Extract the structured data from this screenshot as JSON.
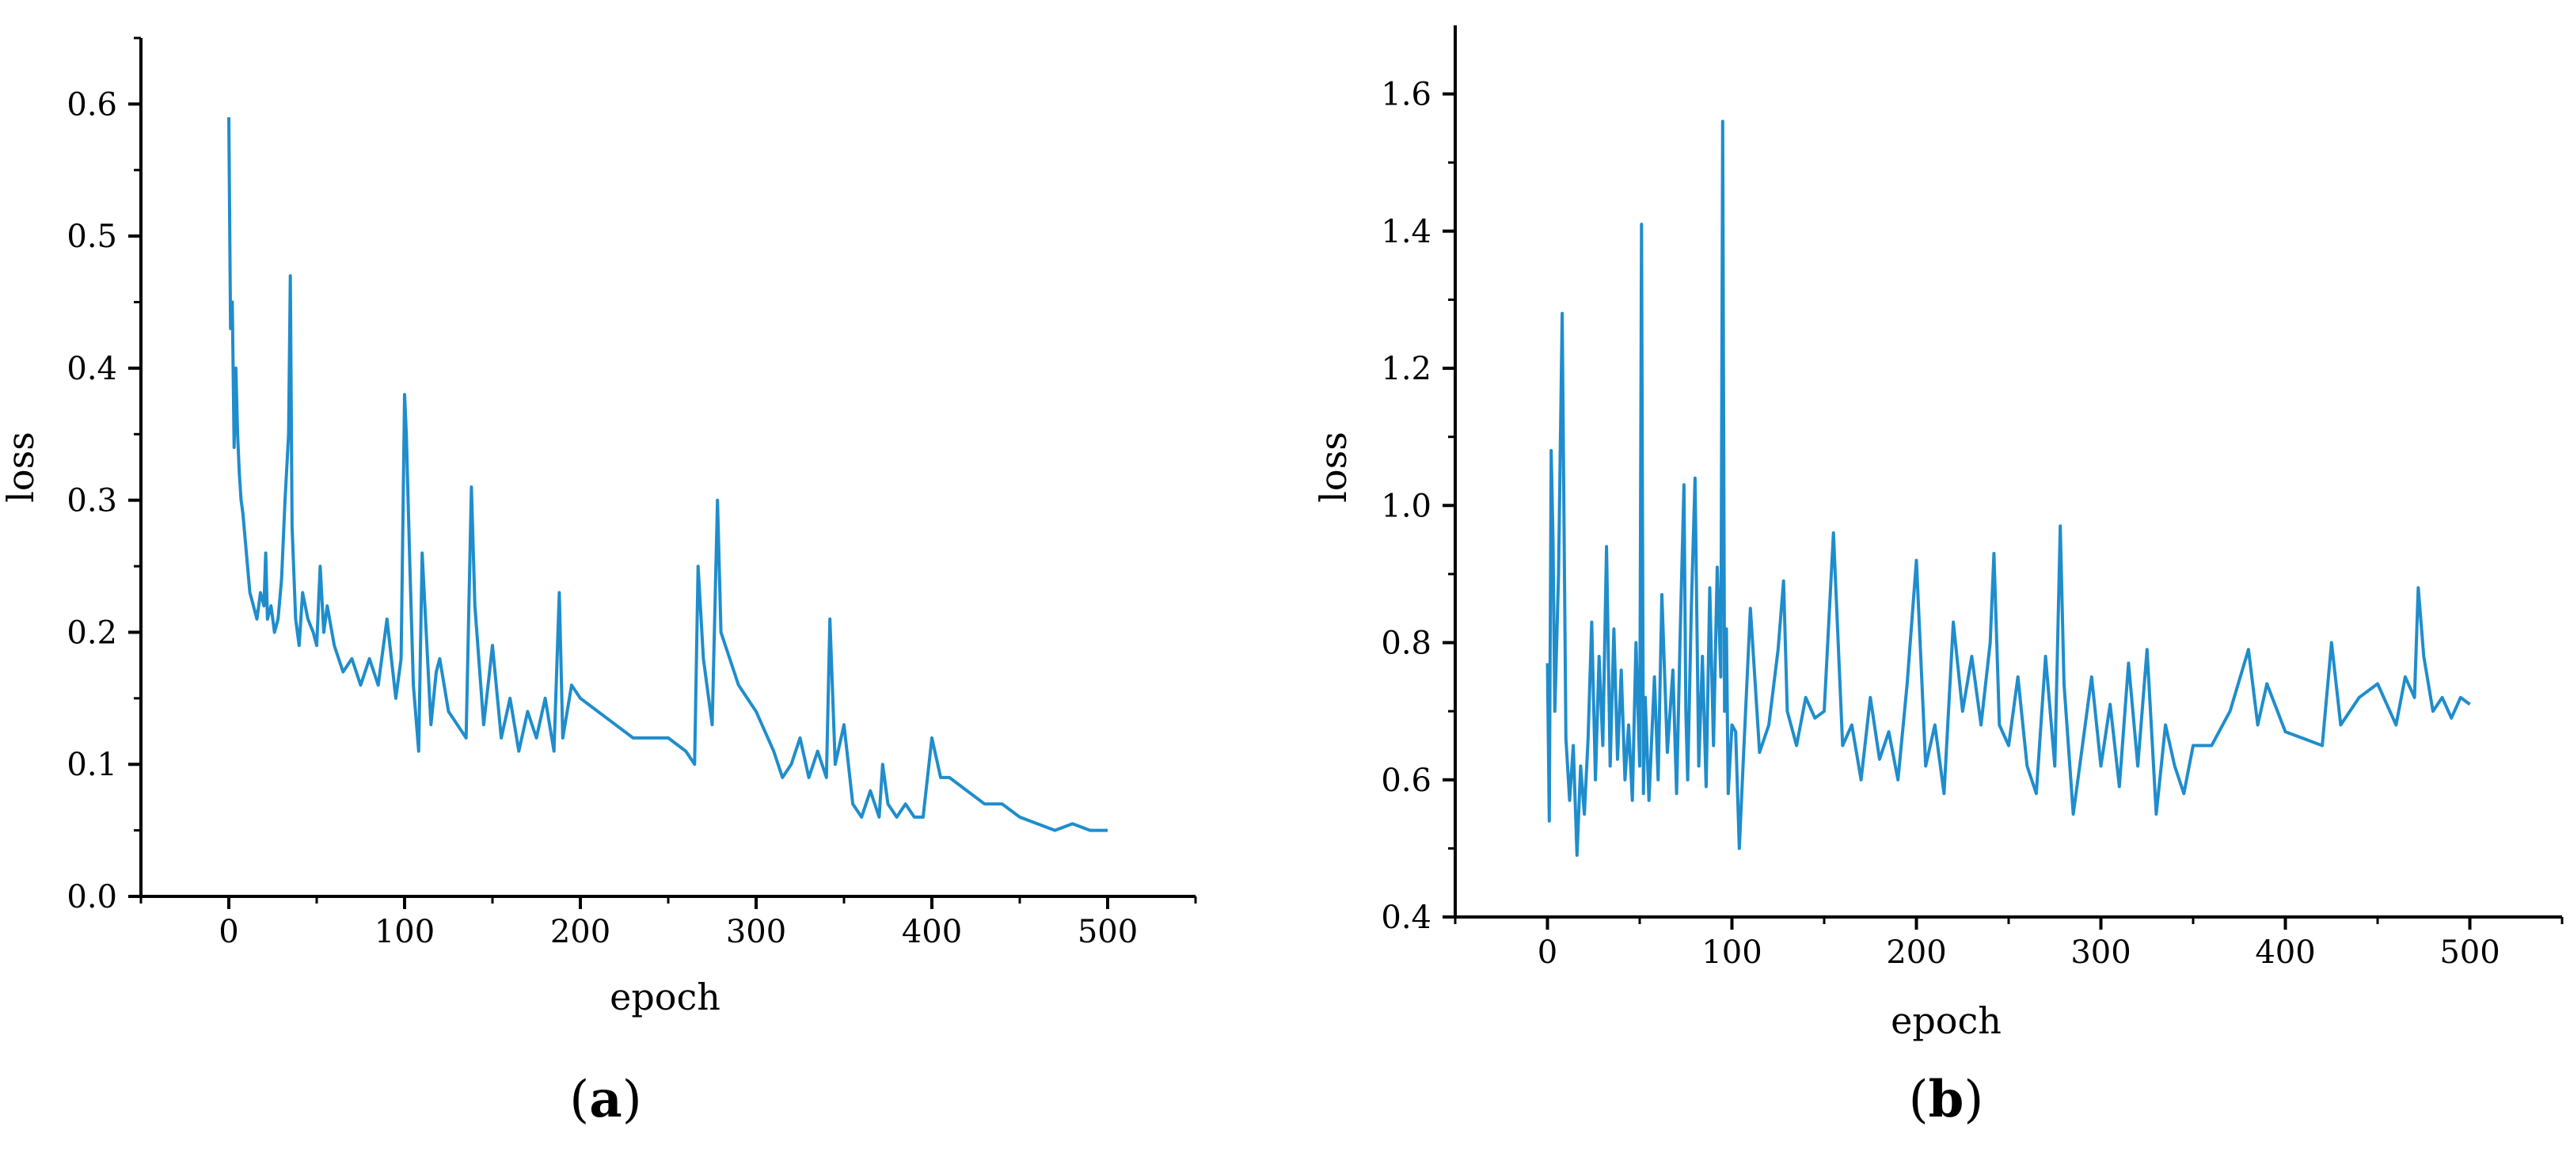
{
  "chart_data": [
    {
      "type": "line",
      "panel_label": "a",
      "xlabel": "epoch",
      "ylabel": "loss",
      "xlim": [
        -50,
        550
      ],
      "ylim": [
        0.0,
        0.65
      ],
      "xticks": [
        0,
        100,
        200,
        300,
        400,
        500
      ],
      "xtick_labels": [
        "0",
        "100",
        "200",
        "300",
        "400",
        "500"
      ],
      "yticks": [
        0.0,
        0.1,
        0.2,
        0.3,
        0.4,
        0.5,
        0.6
      ],
      "ytick_labels": [
        "0.0",
        "0.1",
        "0.2",
        "0.3",
        "0.4",
        "0.5",
        "0.6"
      ],
      "grid": false,
      "color": "#1f8dcc",
      "series": [
        {
          "x": [
            0,
            1,
            2,
            3,
            4,
            5,
            6,
            7,
            8,
            10,
            12,
            14,
            16,
            18,
            20,
            21,
            22,
            24,
            26,
            28,
            30,
            32,
            34,
            35,
            36,
            38,
            40,
            42,
            45,
            48,
            50,
            52,
            54,
            56,
            60,
            65,
            70,
            75,
            80,
            85,
            90,
            95,
            98,
            100,
            101,
            103,
            105,
            108,
            110,
            115,
            118,
            120,
            125,
            130,
            135,
            138,
            140,
            145,
            150,
            155,
            160,
            165,
            170,
            175,
            180,
            185,
            188,
            190,
            195,
            200,
            210,
            220,
            230,
            240,
            250,
            260,
            265,
            267,
            270,
            275,
            278,
            280,
            285,
            290,
            300,
            310,
            315,
            320,
            325,
            330,
            335,
            340,
            342,
            345,
            350,
            355,
            360,
            365,
            370,
            372,
            375,
            380,
            385,
            390,
            395,
            400,
            405,
            410,
            420,
            430,
            440,
            450,
            460,
            470,
            480,
            490,
            500
          ],
          "y": [
            0.59,
            0.43,
            0.45,
            0.34,
            0.4,
            0.35,
            0.32,
            0.3,
            0.29,
            0.26,
            0.23,
            0.22,
            0.21,
            0.23,
            0.22,
            0.26,
            0.21,
            0.22,
            0.2,
            0.21,
            0.24,
            0.3,
            0.35,
            0.47,
            0.28,
            0.21,
            0.19,
            0.23,
            0.21,
            0.2,
            0.19,
            0.25,
            0.2,
            0.22,
            0.19,
            0.17,
            0.18,
            0.16,
            0.18,
            0.16,
            0.21,
            0.15,
            0.18,
            0.38,
            0.35,
            0.25,
            0.16,
            0.11,
            0.26,
            0.13,
            0.17,
            0.18,
            0.14,
            0.13,
            0.12,
            0.31,
            0.22,
            0.13,
            0.19,
            0.12,
            0.15,
            0.11,
            0.14,
            0.12,
            0.15,
            0.11,
            0.23,
            0.12,
            0.16,
            0.15,
            0.14,
            0.13,
            0.12,
            0.12,
            0.12,
            0.11,
            0.1,
            0.25,
            0.18,
            0.13,
            0.3,
            0.2,
            0.18,
            0.16,
            0.14,
            0.11,
            0.09,
            0.1,
            0.12,
            0.09,
            0.11,
            0.09,
            0.21,
            0.1,
            0.13,
            0.07,
            0.06,
            0.08,
            0.06,
            0.1,
            0.07,
            0.06,
            0.07,
            0.06,
            0.06,
            0.12,
            0.09,
            0.09,
            0.08,
            0.07,
            0.07,
            0.06,
            0.055,
            0.05,
            0.055,
            0.05,
            0.05
          ]
        }
      ]
    },
    {
      "type": "line",
      "panel_label": "b",
      "xlabel": "epoch",
      "ylabel": "loss",
      "xlim": [
        -50,
        550
      ],
      "ylim": [
        0.4,
        1.7
      ],
      "xticks": [
        0,
        100,
        200,
        300,
        400,
        500
      ],
      "xtick_labels": [
        "0",
        "100",
        "200",
        "300",
        "400",
        "500"
      ],
      "yticks": [
        0.4,
        0.6,
        0.8,
        1.0,
        1.2,
        1.4,
        1.6
      ],
      "ytick_labels": [
        "0.4",
        "0.6",
        "0.8",
        "1.0",
        "1.2",
        "1.4",
        "1.6"
      ],
      "grid": false,
      "color": "#1f8dcc",
      "series": [
        {
          "x": [
            0,
            1,
            2,
            3,
            4,
            6,
            8,
            10,
            12,
            14,
            16,
            18,
            20,
            22,
            24,
            26,
            28,
            30,
            32,
            34,
            36,
            38,
            40,
            42,
            44,
            46,
            48,
            50,
            51,
            52,
            53,
            55,
            58,
            60,
            62,
            65,
            68,
            70,
            72,
            74,
            75,
            76,
            78,
            80,
            82,
            84,
            86,
            88,
            90,
            92,
            94,
            95,
            96,
            97,
            98,
            100,
            102,
            104,
            106,
            110,
            115,
            120,
            125,
            128,
            130,
            135,
            140,
            145,
            150,
            155,
            160,
            165,
            170,
            175,
            180,
            185,
            190,
            195,
            200,
            205,
            210,
            215,
            220,
            225,
            230,
            235,
            240,
            242,
            245,
            250,
            255,
            260,
            265,
            270,
            275,
            278,
            280,
            285,
            290,
            295,
            300,
            305,
            310,
            315,
            320,
            325,
            330,
            335,
            340,
            345,
            350,
            360,
            370,
            380,
            385,
            390,
            400,
            410,
            420,
            425,
            430,
            440,
            450,
            460,
            465,
            470,
            472,
            475,
            480,
            485,
            490,
            495,
            500
          ],
          "y": [
            0.77,
            0.54,
            1.08,
            0.95,
            0.7,
            0.9,
            1.28,
            0.66,
            0.57,
            0.65,
            0.49,
            0.62,
            0.55,
            0.66,
            0.83,
            0.6,
            0.78,
            0.65,
            0.94,
            0.62,
            0.82,
            0.63,
            0.76,
            0.6,
            0.68,
            0.57,
            0.8,
            0.62,
            1.41,
            0.58,
            0.72,
            0.57,
            0.75,
            0.6,
            0.87,
            0.64,
            0.76,
            0.58,
            0.82,
            1.03,
            0.7,
            0.6,
            0.85,
            1.04,
            0.62,
            0.78,
            0.59,
            0.88,
            0.65,
            0.91,
            0.75,
            1.56,
            0.7,
            0.82,
            0.58,
            0.68,
            0.67,
            0.5,
            0.62,
            0.85,
            0.64,
            0.68,
            0.79,
            0.89,
            0.7,
            0.65,
            0.72,
            0.69,
            0.7,
            0.96,
            0.65,
            0.68,
            0.6,
            0.72,
            0.63,
            0.67,
            0.6,
            0.74,
            0.92,
            0.62,
            0.68,
            0.58,
            0.83,
            0.7,
            0.78,
            0.68,
            0.8,
            0.93,
            0.68,
            0.65,
            0.75,
            0.62,
            0.58,
            0.78,
            0.62,
            0.97,
            0.74,
            0.55,
            0.65,
            0.75,
            0.62,
            0.71,
            0.59,
            0.77,
            0.62,
            0.79,
            0.55,
            0.68,
            0.62,
            0.58,
            0.65,
            0.65,
            0.7,
            0.79,
            0.68,
            0.74,
            0.67,
            0.66,
            0.65,
            0.8,
            0.68,
            0.72,
            0.74,
            0.68,
            0.75,
            0.72,
            0.88,
            0.78,
            0.7,
            0.72,
            0.69,
            0.72,
            0.71
          ]
        }
      ]
    }
  ]
}
